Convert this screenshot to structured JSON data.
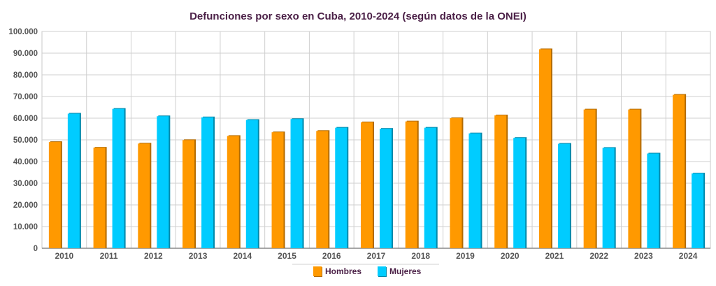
{
  "chart_data": {
    "type": "bar",
    "title": "Defunciones por sexo en Cuba, 2010-2024 (según datos de la ONEI)",
    "xlabel": "",
    "ylabel": "",
    "categories": [
      "2010",
      "2011",
      "2012",
      "2013",
      "2014",
      "2015",
      "2016",
      "2017",
      "2018",
      "2019",
      "2020",
      "2021",
      "2022",
      "2023",
      "2024"
    ],
    "series": [
      {
        "name": "Hombres",
        "color": "#ff9900",
        "values": [
          49000,
          46400,
          48300,
          49900,
          51800,
          53500,
          54100,
          58100,
          58500,
          60000,
          61300,
          91800,
          64000,
          64000,
          70800
        ]
      },
      {
        "name": "Mujeres",
        "color": "#00ccff",
        "values": [
          62100,
          64300,
          60900,
          60400,
          59200,
          59600,
          55600,
          55100,
          55600,
          53000,
          50900,
          48200,
          46300,
          43700,
          34500
        ]
      }
    ],
    "ylim": [
      0,
      100000
    ],
    "yticks": [
      0,
      10000,
      20000,
      30000,
      40000,
      50000,
      60000,
      70000,
      80000,
      90000,
      100000
    ],
    "ytick_labels": [
      "0",
      "10.000",
      "20.000",
      "30.000",
      "40.000",
      "50.000",
      "60.000",
      "70.000",
      "80.000",
      "90.000",
      "100.000"
    ],
    "grid": true,
    "legend_position": "bottom"
  }
}
